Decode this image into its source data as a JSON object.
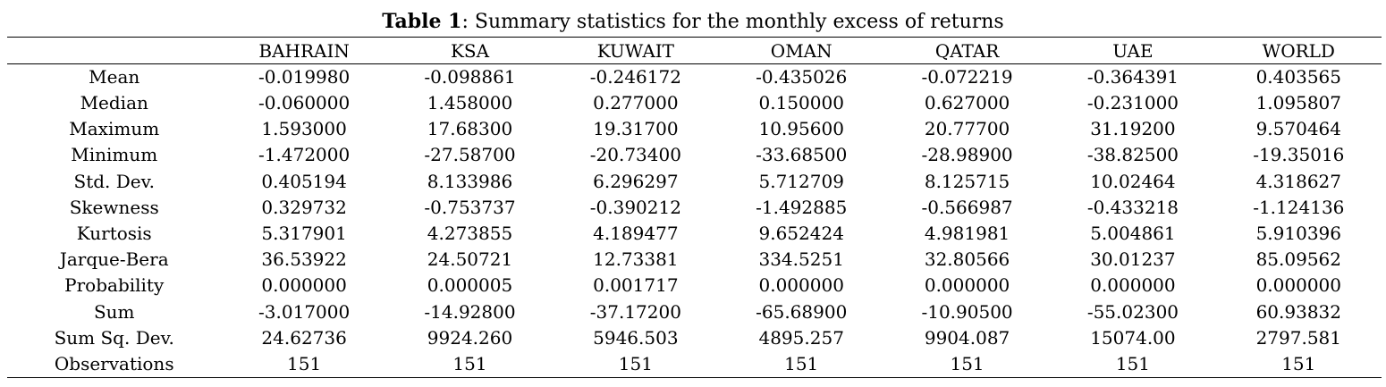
{
  "caption": {
    "label": "Table 1",
    "text": ": Summary statistics for the monthly excess of returns"
  },
  "table": {
    "columns": [
      "",
      "BAHRAIN",
      "KSA",
      "KUWAIT",
      "OMAN",
      "QATAR",
      "UAE",
      "WORLD"
    ],
    "rows": [
      [
        "Mean",
        "-0.019980",
        "-0.098861",
        "-0.246172",
        "-0.435026",
        "-0.072219",
        "-0.364391",
        "0.403565"
      ],
      [
        "Median",
        "-0.060000",
        "1.458000",
        "0.277000",
        "0.150000",
        "0.627000",
        "-0.231000",
        "1.095807"
      ],
      [
        "Maximum",
        "1.593000",
        "17.68300",
        "19.31700",
        "10.95600",
        "20.77700",
        "31.19200",
        "9.570464"
      ],
      [
        "Minimum",
        "-1.472000",
        "-27.58700",
        "-20.73400",
        "-33.68500",
        "-28.98900",
        "-38.82500",
        "-19.35016"
      ],
      [
        "Std. Dev.",
        "0.405194",
        "8.133986",
        "6.296297",
        "5.712709",
        "8.125715",
        "10.02464",
        "4.318627"
      ],
      [
        "Skewness",
        "0.329732",
        "-0.753737",
        "-0.390212",
        "-1.492885",
        "-0.566987",
        "-0.433218",
        "-1.124136"
      ],
      [
        "Kurtosis",
        "5.317901",
        "4.273855",
        "4.189477",
        "9.652424",
        "4.981981",
        "5.004861",
        "5.910396"
      ],
      [
        "Jarque-Bera",
        "36.53922",
        "24.50721",
        "12.73381",
        "334.5251",
        "32.80566",
        "30.01237",
        "85.09562"
      ],
      [
        "Probability",
        "0.000000",
        "0.000005",
        "0.001717",
        "0.000000",
        "0.000000",
        "0.000000",
        "0.000000"
      ],
      [
        "Sum",
        "-3.017000",
        "-14.92800",
        "-37.17200",
        "-65.68900",
        "-10.90500",
        "-55.02300",
        "60.93832"
      ],
      [
        "Sum Sq. Dev.",
        "24.62736",
        "9924.260",
        "5946.503",
        "4895.257",
        "9904.087",
        "15074.00",
        "2797.581"
      ],
      [
        "Observations",
        "151",
        "151",
        "151",
        "151",
        "151",
        "151",
        "151"
      ]
    ]
  }
}
